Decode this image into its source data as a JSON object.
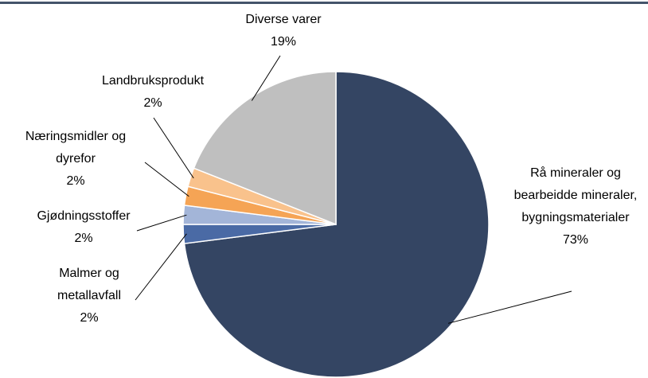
{
  "chart_data": {
    "type": "pie",
    "categories": [
      "Rå mineraler og bearbeidde mineraler, bygningsmaterialer",
      "Malmer og metallavfall",
      "Gjødningsstoffer",
      "Næringsmidler og dyrefor",
      "Landbruksprodukt",
      "Diverse varer"
    ],
    "values": [
      73,
      2,
      2,
      2,
      2,
      19
    ],
    "value_labels": [
      "73%",
      "2%",
      "2%",
      "2%",
      "2%",
      "19%"
    ],
    "colors": [
      "#344563",
      "#4a6aa5",
      "#a3b5d8",
      "#f5a455",
      "#f9c28c",
      "#bfbfbf"
    ]
  }
}
